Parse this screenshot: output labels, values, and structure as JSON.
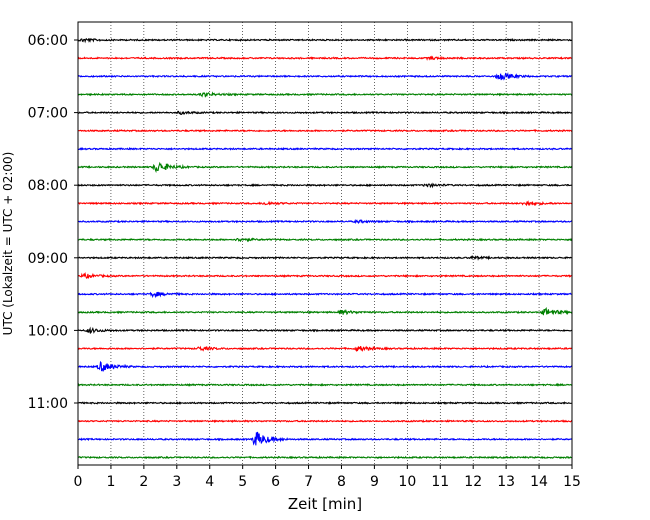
{
  "chart_data": {
    "type": "line",
    "title": "",
    "xlabel": "Zeit  [min]",
    "ylabel": "UTC (Lokalzeit = UTC + 02:00)",
    "xlim": [
      0,
      15
    ],
    "x_ticks": [
      "0",
      "1",
      "2",
      "3",
      "4",
      "5",
      "6",
      "7",
      "8",
      "9",
      "10",
      "11",
      "12",
      "13",
      "14",
      "15"
    ],
    "y_tick_labels": [
      "06:00",
      "07:00",
      "08:00",
      "09:00",
      "10:00",
      "11:00"
    ],
    "grid": "vertical-dotted",
    "trace_interval_minutes": 15,
    "trace_count": 24,
    "first_trace_utc": "06:00",
    "series_colors": [
      "#000000",
      "#ff0000",
      "#0000ff",
      "#008000"
    ],
    "trace_events": [
      {
        "trace": "06:00",
        "minute": 0.15,
        "amplitude": 0.35
      },
      {
        "trace": "06:15",
        "minute": 10.7,
        "amplitude": 0.25
      },
      {
        "trace": "06:30",
        "minute": 12.8,
        "amplitude": 0.9
      },
      {
        "trace": "06:45",
        "minute": 3.8,
        "amplitude": 0.45
      },
      {
        "trace": "07:00",
        "minute": 3.1,
        "amplitude": 0.3
      },
      {
        "trace": "07:45",
        "minute": 2.4,
        "amplitude": 1.3
      },
      {
        "trace": "08:00",
        "minute": 10.6,
        "amplitude": 0.35
      },
      {
        "trace": "08:15",
        "minute": 5.7,
        "amplitude": 0.35
      },
      {
        "trace": "08:15",
        "minute": 13.6,
        "amplitude": 0.5
      },
      {
        "trace": "08:30",
        "minute": 8.5,
        "amplitude": 0.25
      },
      {
        "trace": "08:45",
        "minute": 4.9,
        "amplitude": 0.35
      },
      {
        "trace": "09:00",
        "minute": 12.0,
        "amplitude": 0.25
      },
      {
        "trace": "09:15",
        "minute": 0.2,
        "amplitude": 0.45
      },
      {
        "trace": "09:30",
        "minute": 2.3,
        "amplitude": 0.55
      },
      {
        "trace": "09:45",
        "minute": 8.0,
        "amplitude": 0.5
      },
      {
        "trace": "09:45",
        "minute": 14.2,
        "amplitude": 0.85
      },
      {
        "trace": "10:00",
        "minute": 0.35,
        "amplitude": 0.5
      },
      {
        "trace": "10:15",
        "minute": 3.7,
        "amplitude": 0.45
      },
      {
        "trace": "10:15",
        "minute": 8.5,
        "amplitude": 0.6
      },
      {
        "trace": "10:30",
        "minute": 0.7,
        "amplitude": 1.2
      },
      {
        "trace": "11:30",
        "minute": 5.4,
        "amplitude": 1.9
      }
    ]
  }
}
